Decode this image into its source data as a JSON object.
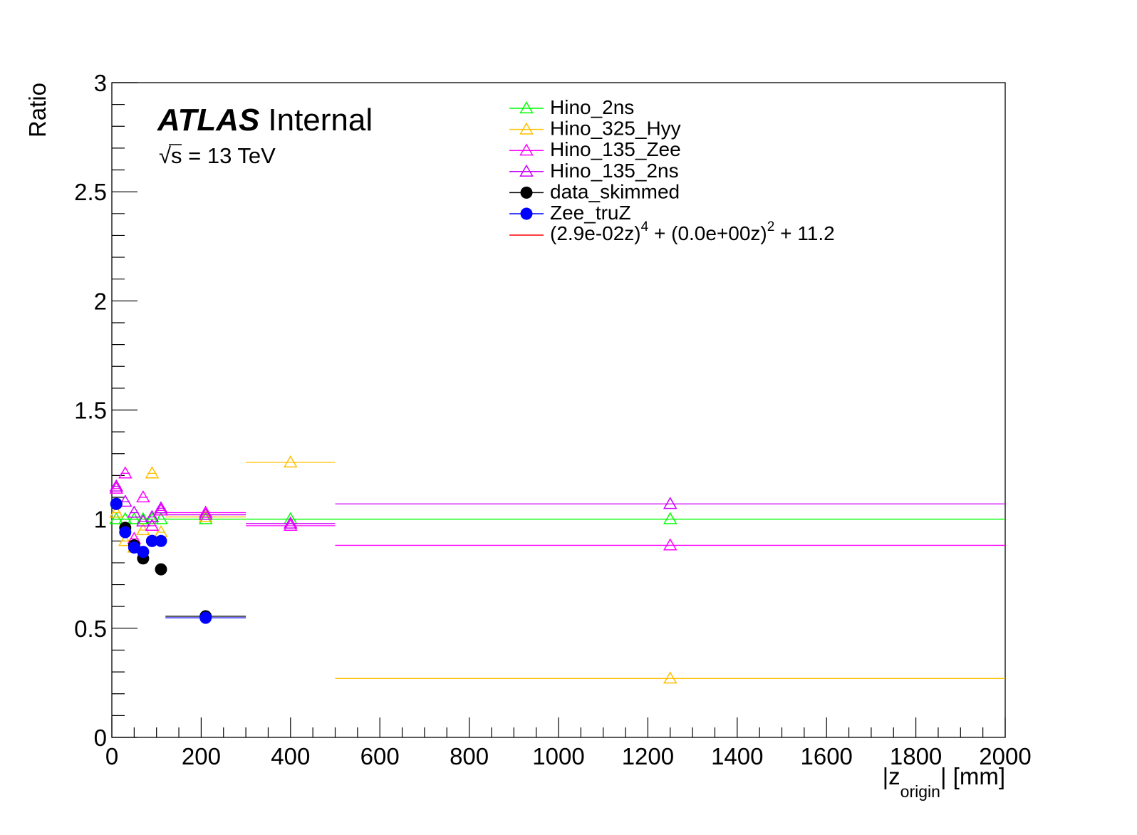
{
  "chart_data": {
    "type": "scatter",
    "title": "",
    "xlabel": "|z_origin| [mm]",
    "xlabel_main": "|z",
    "xlabel_sub": "origin",
    "xlabel_tail": "| [mm]",
    "ylabel": "Ratio",
    "xlim": [
      0,
      2000
    ],
    "ylim": [
      0,
      3
    ],
    "x_ticks": [
      0,
      200,
      400,
      600,
      800,
      1000,
      1200,
      1400,
      1600,
      1800,
      2000
    ],
    "x_tick_labels": [
      "0",
      "200",
      "400",
      "600",
      "800",
      "1000",
      "1200",
      "1400",
      "1600",
      "1800",
      "2000"
    ],
    "y_ticks": [
      0,
      0.5,
      1,
      1.5,
      2,
      2.5,
      3
    ],
    "y_tick_labels": [
      "0",
      "0.5",
      "1",
      "1.5",
      "2",
      "2.5",
      "3"
    ],
    "grid": false,
    "legend_position": "top-right",
    "series": [
      {
        "name": "Hino_2ns",
        "color": "#00ff00",
        "marker": "open-triangle",
        "points": [
          {
            "x": 10,
            "xlo": 0,
            "xhi": 20,
            "y": 1.0
          },
          {
            "x": 30,
            "xlo": 20,
            "xhi": 40,
            "y": 1.0
          },
          {
            "x": 50,
            "xlo": 40,
            "xhi": 60,
            "y": 1.0
          },
          {
            "x": 70,
            "xlo": 60,
            "xhi": 80,
            "y": 1.0
          },
          {
            "x": 90,
            "xlo": 80,
            "xhi": 100,
            "y": 1.0
          },
          {
            "x": 110,
            "xlo": 100,
            "xhi": 120,
            "y": 1.0
          },
          {
            "x": 210,
            "xlo": 120,
            "xhi": 300,
            "y": 1.0
          },
          {
            "x": 400,
            "xlo": 300,
            "xhi": 500,
            "y": 1.0
          },
          {
            "x": 1250,
            "xlo": 500,
            "xhi": 2000,
            "y": 1.0
          }
        ]
      },
      {
        "name": "Hino_325_Hyy",
        "color": "#ffbf00",
        "marker": "open-triangle",
        "points": [
          {
            "x": 10,
            "xlo": 0,
            "xhi": 20,
            "y": 1.03
          },
          {
            "x": 30,
            "xlo": 20,
            "xhi": 40,
            "y": 0.9
          },
          {
            "x": 50,
            "xlo": 40,
            "xhi": 60,
            "y": 0.87
          },
          {
            "x": 70,
            "xlo": 60,
            "xhi": 80,
            "y": 0.95
          },
          {
            "x": 90,
            "xlo": 80,
            "xhi": 100,
            "y": 1.21
          },
          {
            "x": 110,
            "xlo": 100,
            "xhi": 120,
            "y": 0.94
          },
          {
            "x": 210,
            "xlo": 120,
            "xhi": 300,
            "y": 1.01
          },
          {
            "x": 400,
            "xlo": 300,
            "xhi": 500,
            "y": 1.26
          },
          {
            "x": 1250,
            "xlo": 500,
            "xhi": 2000,
            "y": 0.27
          }
        ]
      },
      {
        "name": "Hino_135_Zee",
        "color": "#ff00ff",
        "marker": "open-triangle",
        "points": [
          {
            "x": 10,
            "xlo": 0,
            "xhi": 20,
            "y": 1.14
          },
          {
            "x": 30,
            "xlo": 20,
            "xhi": 40,
            "y": 1.21
          },
          {
            "x": 50,
            "xlo": 40,
            "xhi": 60,
            "y": 0.91
          },
          {
            "x": 70,
            "xlo": 60,
            "xhi": 80,
            "y": 1.1
          },
          {
            "x": 90,
            "xlo": 80,
            "xhi": 100,
            "y": 0.97
          },
          {
            "x": 110,
            "xlo": 100,
            "xhi": 120,
            "y": 1.04
          },
          {
            "x": 210,
            "xlo": 120,
            "xhi": 300,
            "y": 1.03
          },
          {
            "x": 400,
            "xlo": 300,
            "xhi": 500,
            "y": 0.97
          },
          {
            "x": 1250,
            "xlo": 500,
            "xhi": 2000,
            "y": 0.88
          }
        ]
      },
      {
        "name": "Hino_135_2ns",
        "color": "#cc00ff",
        "marker": "open-triangle",
        "points": [
          {
            "x": 10,
            "xlo": 0,
            "xhi": 20,
            "y": 1.15
          },
          {
            "x": 30,
            "xlo": 20,
            "xhi": 40,
            "y": 1.08
          },
          {
            "x": 50,
            "xlo": 40,
            "xhi": 60,
            "y": 1.03
          },
          {
            "x": 70,
            "xlo": 60,
            "xhi": 80,
            "y": 0.99
          },
          {
            "x": 90,
            "xlo": 80,
            "xhi": 100,
            "y": 1.01
          },
          {
            "x": 110,
            "xlo": 100,
            "xhi": 120,
            "y": 1.05
          },
          {
            "x": 210,
            "xlo": 120,
            "xhi": 300,
            "y": 1.02
          },
          {
            "x": 400,
            "xlo": 300,
            "xhi": 500,
            "y": 0.98
          },
          {
            "x": 1250,
            "xlo": 500,
            "xhi": 2000,
            "y": 1.07
          }
        ]
      },
      {
        "name": "data_skimmed",
        "color": "#000000",
        "marker": "filled-circle",
        "points": [
          {
            "x": 10,
            "xlo": 0,
            "xhi": 20,
            "y": 1.07
          },
          {
            "x": 30,
            "xlo": 20,
            "xhi": 40,
            "y": 0.96
          },
          {
            "x": 50,
            "xlo": 40,
            "xhi": 60,
            "y": 0.88
          },
          {
            "x": 70,
            "xlo": 60,
            "xhi": 80,
            "y": 0.82
          },
          {
            "x": 90,
            "xlo": 80,
            "xhi": 100,
            "y": 0.9
          },
          {
            "x": 110,
            "xlo": 100,
            "xhi": 120,
            "y": 0.77
          },
          {
            "x": 210,
            "xlo": 120,
            "xhi": 300,
            "y": 0.555
          }
        ]
      },
      {
        "name": "Zee_truZ",
        "color": "#0000ff",
        "marker": "filled-circle",
        "points": [
          {
            "x": 10,
            "xlo": 0,
            "xhi": 20,
            "y": 1.07
          },
          {
            "x": 30,
            "xlo": 20,
            "xhi": 40,
            "y": 0.94
          },
          {
            "x": 50,
            "xlo": 40,
            "xhi": 60,
            "y": 0.87
          },
          {
            "x": 70,
            "xlo": 60,
            "xhi": 80,
            "y": 0.85
          },
          {
            "x": 90,
            "xlo": 80,
            "xhi": 100,
            "y": 0.9
          },
          {
            "x": 110,
            "xlo": 100,
            "xhi": 120,
            "y": 0.9
          },
          {
            "x": 210,
            "xlo": 120,
            "xhi": 300,
            "y": 0.548
          }
        ]
      }
    ],
    "fit": {
      "name": "(2.9e-02z)^4 + (0.0e+00z)^2 + 11.2",
      "color": "#ff0000",
      "term1": "(2.9e-02z)",
      "exp1": "4",
      "term2": " + (0.0e+00z)",
      "exp2": "2",
      "term3": " + 11.2"
    },
    "annotations": {
      "atlas_bold": "ATLAS",
      "atlas_status": "Internal",
      "energy_sqrt": "√",
      "energy_s": "s",
      "energy_rest": " = 13 TeV"
    }
  }
}
